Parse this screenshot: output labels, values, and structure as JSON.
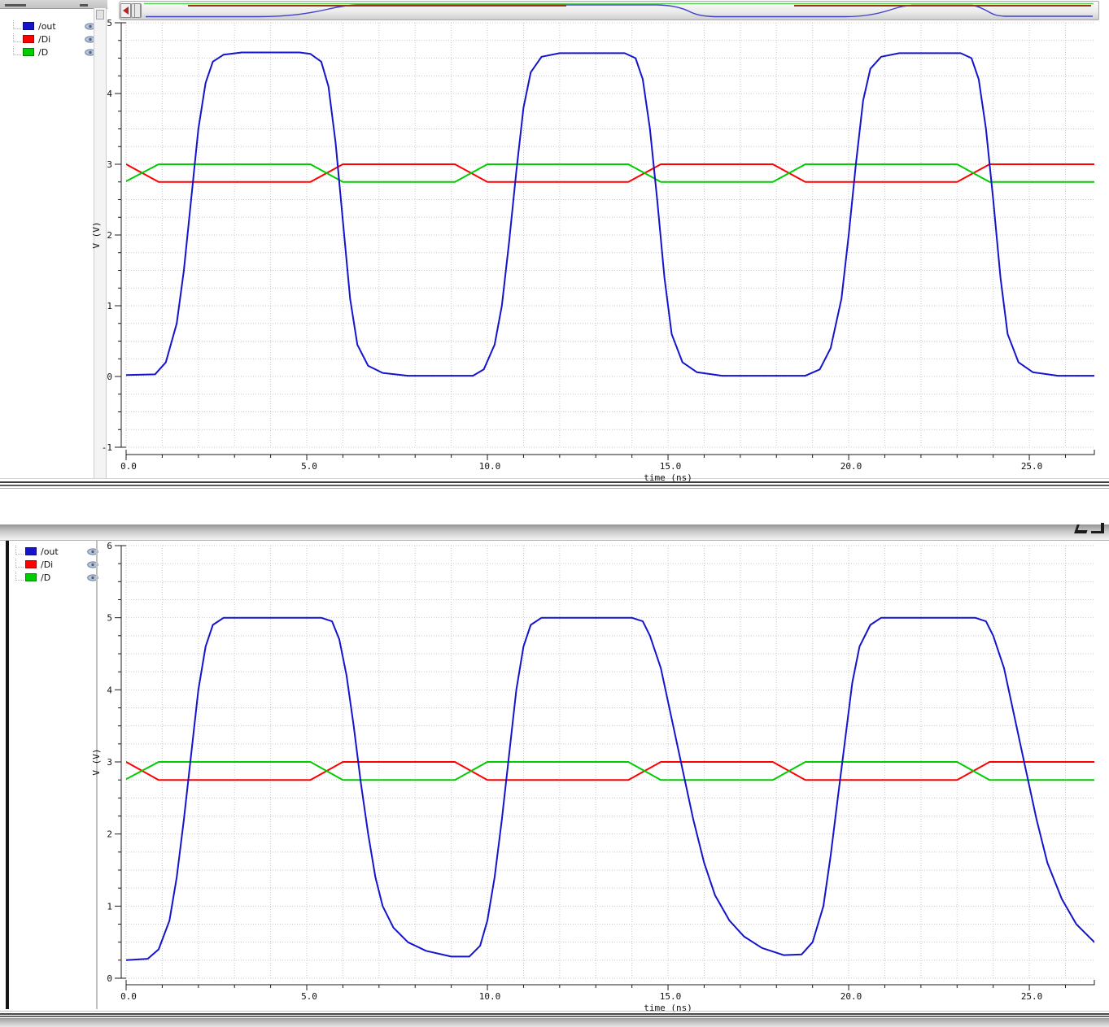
{
  "mini_strip": {
    "green": "#5ad05a",
    "brown": "#993311",
    "blue": "#4040cc"
  },
  "chart_data": [
    {
      "type": "line",
      "title": "",
      "xlabel": "time (ns)",
      "ylabel": "V (V)",
      "xlim": [
        0,
        26.8
      ],
      "ylim": [
        -1,
        5
      ],
      "x_ticks": [
        0,
        5,
        10,
        15,
        20,
        25
      ],
      "x_tick_labels": [
        "0.0",
        "5.0",
        "10.0",
        "15.0",
        "20.0",
        "25.0"
      ],
      "y_ticks": [
        5,
        4,
        3,
        2,
        1,
        0,
        -1
      ],
      "y_tick_labels": [
        "5",
        "4",
        "3",
        "2",
        "1",
        "0",
        "-1"
      ],
      "x_minor": 1,
      "y_minor": 0.25,
      "grid": "dotted",
      "legend_position": "left",
      "series": [
        {
          "name": "/out",
          "color": "#1414cc",
          "points": [
            [
              0,
              0.02
            ],
            [
              0.8,
              0.03
            ],
            [
              1.1,
              0.2
            ],
            [
              1.4,
              0.75
            ],
            [
              1.6,
              1.5
            ],
            [
              1.8,
              2.5
            ],
            [
              2.0,
              3.5
            ],
            [
              2.2,
              4.15
            ],
            [
              2.4,
              4.45
            ],
            [
              2.7,
              4.55
            ],
            [
              3.2,
              4.58
            ],
            [
              4.8,
              4.58
            ],
            [
              5.1,
              4.56
            ],
            [
              5.4,
              4.45
            ],
            [
              5.6,
              4.1
            ],
            [
              5.8,
              3.3
            ],
            [
              6.0,
              2.2
            ],
            [
              6.2,
              1.1
            ],
            [
              6.4,
              0.45
            ],
            [
              6.7,
              0.15
            ],
            [
              7.1,
              0.05
            ],
            [
              7.8,
              0.01
            ],
            [
              9.6,
              0.01
            ],
            [
              9.9,
              0.1
            ],
            [
              10.2,
              0.45
            ],
            [
              10.4,
              1.0
            ],
            [
              10.6,
              1.9
            ],
            [
              10.8,
              2.9
            ],
            [
              11.0,
              3.8
            ],
            [
              11.2,
              4.3
            ],
            [
              11.5,
              4.52
            ],
            [
              12.0,
              4.57
            ],
            [
              13.8,
              4.57
            ],
            [
              14.1,
              4.5
            ],
            [
              14.3,
              4.2
            ],
            [
              14.5,
              3.5
            ],
            [
              14.7,
              2.5
            ],
            [
              14.9,
              1.4
            ],
            [
              15.1,
              0.6
            ],
            [
              15.4,
              0.2
            ],
            [
              15.8,
              0.06
            ],
            [
              16.5,
              0.01
            ],
            [
              18.8,
              0.01
            ],
            [
              19.2,
              0.1
            ],
            [
              19.5,
              0.4
            ],
            [
              19.8,
              1.1
            ],
            [
              20.0,
              2.0
            ],
            [
              20.2,
              3.0
            ],
            [
              20.4,
              3.9
            ],
            [
              20.6,
              4.35
            ],
            [
              20.9,
              4.52
            ],
            [
              21.4,
              4.57
            ],
            [
              23.1,
              4.57
            ],
            [
              23.4,
              4.5
            ],
            [
              23.6,
              4.2
            ],
            [
              23.8,
              3.5
            ],
            [
              24.0,
              2.5
            ],
            [
              24.2,
              1.4
            ],
            [
              24.4,
              0.6
            ],
            [
              24.7,
              0.2
            ],
            [
              25.1,
              0.06
            ],
            [
              25.8,
              0.01
            ],
            [
              26.8,
              0.01
            ]
          ]
        },
        {
          "name": "/Di",
          "color": "#ff0000",
          "points": [
            [
              0,
              3.0
            ],
            [
              0.9,
              2.75
            ],
            [
              5.1,
              2.75
            ],
            [
              6.0,
              3.0
            ],
            [
              9.1,
              3.0
            ],
            [
              10.0,
              2.75
            ],
            [
              13.9,
              2.75
            ],
            [
              14.8,
              3.0
            ],
            [
              17.9,
              3.0
            ],
            [
              18.8,
              2.75
            ],
            [
              23.0,
              2.75
            ],
            [
              23.9,
              3.0
            ],
            [
              26.8,
              3.0
            ]
          ]
        },
        {
          "name": "/D",
          "color": "#00cc00",
          "points": [
            [
              0,
              2.76
            ],
            [
              0.9,
              3.0
            ],
            [
              5.1,
              3.0
            ],
            [
              6.0,
              2.75
            ],
            [
              9.1,
              2.75
            ],
            [
              10.0,
              3.0
            ],
            [
              13.9,
              3.0
            ],
            [
              14.8,
              2.75
            ],
            [
              17.9,
              2.75
            ],
            [
              18.8,
              3.0
            ],
            [
              23.0,
              3.0
            ],
            [
              23.9,
              2.75
            ],
            [
              26.8,
              2.75
            ]
          ]
        }
      ]
    },
    {
      "type": "line",
      "title": "",
      "xlabel": "time (ns)",
      "ylabel": "V (V)",
      "xlim": [
        0,
        26.8
      ],
      "ylim": [
        0,
        6
      ],
      "x_ticks": [
        0,
        5,
        10,
        15,
        20,
        25
      ],
      "x_tick_labels": [
        "0.0",
        "5.0",
        "10.0",
        "15.0",
        "20.0",
        "25.0"
      ],
      "y_ticks": [
        6,
        5,
        4,
        3,
        2,
        1,
        0
      ],
      "y_tick_labels": [
        "6",
        "5",
        "4",
        "3",
        "2",
        "1",
        "0"
      ],
      "x_minor": 1,
      "y_minor": 0.25,
      "grid": "dotted",
      "legend_position": "left",
      "series": [
        {
          "name": "/out",
          "color": "#1414cc",
          "points": [
            [
              0,
              0.25
            ],
            [
              0.6,
              0.27
            ],
            [
              0.9,
              0.4
            ],
            [
              1.2,
              0.8
            ],
            [
              1.4,
              1.4
            ],
            [
              1.6,
              2.2
            ],
            [
              1.8,
              3.1
            ],
            [
              2.0,
              4.0
            ],
            [
              2.2,
              4.6
            ],
            [
              2.4,
              4.9
            ],
            [
              2.7,
              5.0
            ],
            [
              5.4,
              5.0
            ],
            [
              5.7,
              4.95
            ],
            [
              5.9,
              4.7
            ],
            [
              6.1,
              4.2
            ],
            [
              6.3,
              3.5
            ],
            [
              6.5,
              2.7
            ],
            [
              6.7,
              2.0
            ],
            [
              6.9,
              1.4
            ],
            [
              7.1,
              1.0
            ],
            [
              7.4,
              0.7
            ],
            [
              7.8,
              0.5
            ],
            [
              8.3,
              0.38
            ],
            [
              9.0,
              0.3
            ],
            [
              9.5,
              0.3
            ],
            [
              9.8,
              0.45
            ],
            [
              10.0,
              0.8
            ],
            [
              10.2,
              1.4
            ],
            [
              10.4,
              2.2
            ],
            [
              10.6,
              3.1
            ],
            [
              10.8,
              4.0
            ],
            [
              11.0,
              4.6
            ],
            [
              11.2,
              4.9
            ],
            [
              11.5,
              5.0
            ],
            [
              14.0,
              5.0
            ],
            [
              14.3,
              4.95
            ],
            [
              14.5,
              4.75
            ],
            [
              14.8,
              4.3
            ],
            [
              15.1,
              3.6
            ],
            [
              15.4,
              2.9
            ],
            [
              15.7,
              2.2
            ],
            [
              16.0,
              1.6
            ],
            [
              16.3,
              1.15
            ],
            [
              16.7,
              0.8
            ],
            [
              17.1,
              0.58
            ],
            [
              17.6,
              0.42
            ],
            [
              18.2,
              0.32
            ],
            [
              18.7,
              0.33
            ],
            [
              19.0,
              0.5
            ],
            [
              19.3,
              1.0
            ],
            [
              19.5,
              1.7
            ],
            [
              19.7,
              2.5
            ],
            [
              19.9,
              3.3
            ],
            [
              20.1,
              4.1
            ],
            [
              20.3,
              4.6
            ],
            [
              20.6,
              4.9
            ],
            [
              20.9,
              5.0
            ],
            [
              23.5,
              5.0
            ],
            [
              23.8,
              4.95
            ],
            [
              24.0,
              4.75
            ],
            [
              24.3,
              4.3
            ],
            [
              24.6,
              3.6
            ],
            [
              24.9,
              2.9
            ],
            [
              25.2,
              2.2
            ],
            [
              25.5,
              1.6
            ],
            [
              25.9,
              1.1
            ],
            [
              26.3,
              0.75
            ],
            [
              26.8,
              0.5
            ]
          ]
        },
        {
          "name": "/Di",
          "color": "#ff0000",
          "points": [
            [
              0,
              3.0
            ],
            [
              0.9,
              2.75
            ],
            [
              5.1,
              2.75
            ],
            [
              6.0,
              3.0
            ],
            [
              9.1,
              3.0
            ],
            [
              10.0,
              2.75
            ],
            [
              13.9,
              2.75
            ],
            [
              14.8,
              3.0
            ],
            [
              17.9,
              3.0
            ],
            [
              18.8,
              2.75
            ],
            [
              23.0,
              2.75
            ],
            [
              23.9,
              3.0
            ],
            [
              26.8,
              3.0
            ]
          ]
        },
        {
          "name": "/D",
          "color": "#00cc00",
          "points": [
            [
              0,
              2.76
            ],
            [
              0.9,
              3.0
            ],
            [
              5.1,
              3.0
            ],
            [
              6.0,
              2.75
            ],
            [
              9.1,
              2.75
            ],
            [
              10.0,
              3.0
            ],
            [
              13.9,
              3.0
            ],
            [
              14.8,
              2.75
            ],
            [
              17.9,
              2.75
            ],
            [
              18.8,
              3.0
            ],
            [
              23.0,
              3.0
            ],
            [
              23.9,
              2.75
            ],
            [
              26.8,
              2.75
            ]
          ]
        }
      ]
    }
  ]
}
